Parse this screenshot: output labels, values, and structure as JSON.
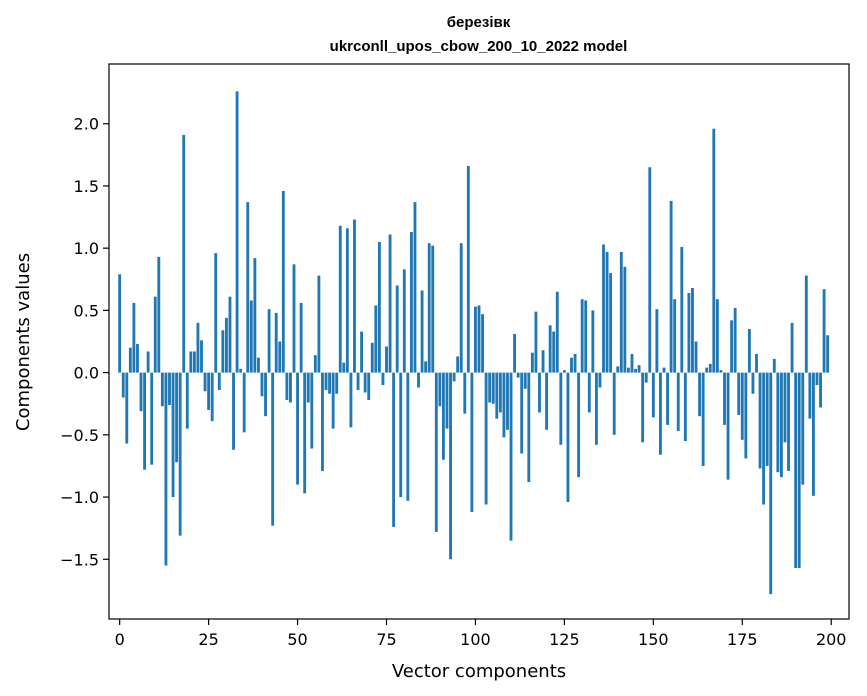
{
  "chart_data": {
    "type": "bar",
    "title": "березівк",
    "subtitle": "ukrconll_upos_cbow_200_10_2022 model",
    "xlabel": "Vector components",
    "ylabel": "Components values",
    "xlim": [
      -3,
      205
    ],
    "ylim": [
      -1.98,
      2.48
    ],
    "xticks": [
      0,
      25,
      50,
      75,
      100,
      125,
      150,
      175,
      200
    ],
    "xtick_labels": [
      "0",
      "25",
      "50",
      "75",
      "100",
      "125",
      "150",
      "175",
      "200"
    ],
    "yticks": [
      -1.5,
      -1.0,
      -0.5,
      0.0,
      0.5,
      1.0,
      1.5,
      2.0
    ],
    "ytick_labels": [
      "−1.5",
      "−1.0",
      "−0.5",
      "0.0",
      "0.5",
      "1.0",
      "1.5",
      "2.0"
    ],
    "bar_color": "#1f77b4",
    "values": [
      0.79,
      -0.2,
      -0.57,
      0.2,
      0.56,
      0.23,
      -0.31,
      -0.78,
      0.17,
      -0.74,
      0.61,
      0.93,
      -0.27,
      -1.55,
      -0.26,
      -1.0,
      -0.72,
      -1.31,
      1.91,
      -0.45,
      0.17,
      0.17,
      0.4,
      0.26,
      -0.15,
      -0.3,
      -0.39,
      0.96,
      -0.14,
      0.34,
      0.44,
      0.61,
      -0.62,
      2.26,
      0.03,
      -0.48,
      1.37,
      0.58,
      0.92,
      0.12,
      -0.19,
      -0.35,
      0.51,
      -1.23,
      0.48,
      0.25,
      1.46,
      -0.22,
      -0.24,
      0.87,
      -0.9,
      0.56,
      -0.97,
      -0.24,
      -0.61,
      0.14,
      0.78,
      -0.79,
      -0.14,
      -0.17,
      -0.45,
      -0.17,
      1.18,
      0.08,
      1.16,
      -0.44,
      1.23,
      -0.14,
      0.33,
      -0.16,
      -0.22,
      0.24,
      0.54,
      1.05,
      -0.1,
      0.21,
      1.11,
      -1.24,
      0.7,
      -1.0,
      0.83,
      -1.03,
      1.13,
      1.37,
      -0.12,
      0.66,
      0.09,
      1.04,
      1.02,
      -1.28,
      -0.27,
      -0.7,
      -0.45,
      -1.5,
      -0.07,
      0.13,
      1.04,
      -0.33,
      1.66,
      -1.12,
      0.53,
      0.54,
      0.47,
      -1.06,
      -0.24,
      -0.25,
      -0.37,
      -0.32,
      -0.52,
      -0.46,
      -1.35,
      0.31,
      -0.04,
      -0.65,
      -0.13,
      -0.88,
      0.16,
      0.49,
      -0.32,
      0.18,
      -0.46,
      0.38,
      0.33,
      0.65,
      -0.58,
      0.02,
      -1.04,
      0.12,
      0.15,
      -0.84,
      0.59,
      0.58,
      -0.32,
      0.5,
      -0.58,
      -0.12,
      1.03,
      0.97,
      0.8,
      -0.5,
      0.05,
      0.97,
      0.85,
      0.04,
      0.15,
      0.03,
      0.06,
      -0.56,
      -0.08,
      1.65,
      -0.36,
      0.51,
      -0.66,
      0.04,
      -0.42,
      1.38,
      0.59,
      -0.47,
      1.01,
      -0.55,
      0.64,
      0.68,
      0.25,
      -0.35,
      -0.75,
      0.04,
      0.07,
      1.96,
      0.59,
      0.02,
      -0.42,
      -0.86,
      0.42,
      0.52,
      -0.34,
      -0.54,
      -0.69,
      0.35,
      -0.17,
      0.15,
      -0.77,
      -1.06,
      -0.75,
      -1.78,
      0.11,
      -0.8,
      -0.84,
      -0.56,
      -0.79,
      0.4,
      -1.57,
      -1.57,
      -0.9,
      0.78,
      -0.37,
      -0.99,
      -0.1,
      -0.28,
      0.67,
      0.3
    ]
  }
}
